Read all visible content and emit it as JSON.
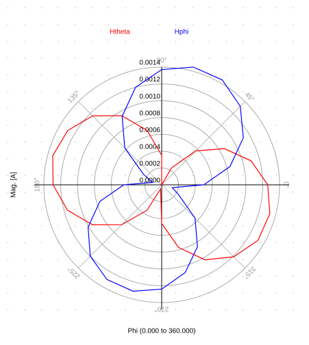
{
  "chart_data": {
    "type": "polar",
    "ylabel": "Mag. [A]",
    "xlabel": "Phi (0.000 to 360.000)",
    "theta": [
      0,
      15,
      30,
      45,
      60,
      75,
      90,
      105,
      120,
      135,
      150,
      165,
      180,
      195,
      210,
      225,
      240,
      255,
      270,
      285,
      300,
      315,
      330,
      345,
      360
    ],
    "series": [
      {
        "name": "Htheta",
        "color": "#ff0000",
        "values": [
          0.00126,
          0.0011,
          0.00086,
          0.00057,
          0.00023,
          0.0,
          0.00035,
          0.00067,
          0.00095,
          0.00116,
          0.00129,
          0.00134,
          0.00129,
          0.00116,
          0.00095,
          0.00067,
          0.00035,
          5e-05,
          0.00046,
          0.00077,
          0.00103,
          0.00121,
          0.00132,
          0.00133,
          0.00126
        ]
      },
      {
        "name": "Hphi",
        "color": "#0000ff",
        "values": [
          0.0005,
          0.00084,
          0.00112,
          0.00132,
          0.00144,
          0.00145,
          0.00137,
          0.0012,
          0.00094,
          0.00062,
          0.00025,
          0.00011,
          0.00045,
          0.00076,
          0.00101,
          0.0012,
          0.0013,
          0.00131,
          0.00124,
          0.00108,
          0.00085,
          0.00056,
          0.00023,
          0.00013,
          0.0005
        ]
      }
    ],
    "rlim": [
      0,
      0.0014
    ],
    "rticks": [
      {
        "value": 0,
        "label": "0.0000"
      },
      {
        "value": 0.0002,
        "label": "0.0002"
      },
      {
        "value": 0.0004,
        "label": "0.0004"
      },
      {
        "value": 0.0006,
        "label": "0.0006"
      },
      {
        "value": 0.0008,
        "label": "0.0008"
      },
      {
        "value": 0.001,
        "label": "0.0010"
      },
      {
        "value": 0.0012,
        "label": "0.0012"
      },
      {
        "value": 0.0014,
        "label": "0.0014"
      }
    ],
    "thetaticks": [
      {
        "value": 0,
        "label": "0°"
      },
      {
        "value": 45,
        "label": "45°"
      },
      {
        "value": 90,
        "label": "90°"
      },
      {
        "value": 135,
        "label": "135°"
      },
      {
        "value": 180,
        "label": "180°"
      },
      {
        "value": 225,
        "label": "225°"
      },
      {
        "value": 270,
        "label": "270°"
      },
      {
        "value": 315,
        "label": "315°"
      }
    ],
    "grid": true
  }
}
